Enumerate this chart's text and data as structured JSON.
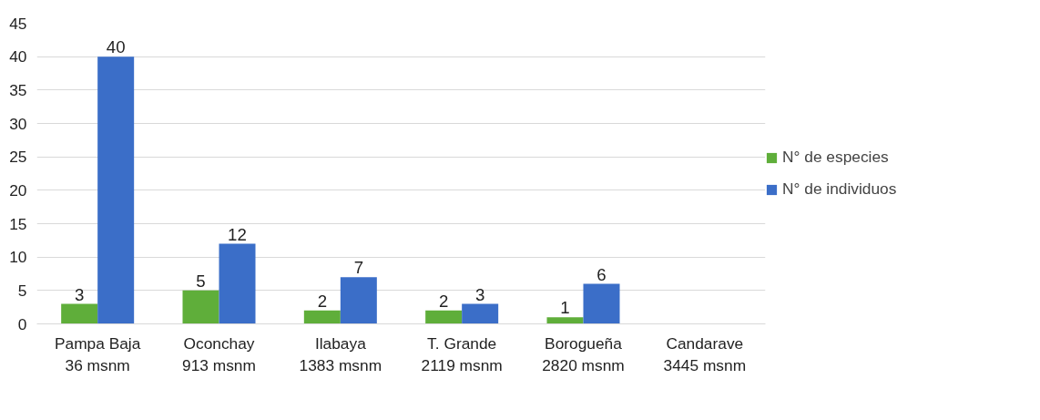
{
  "chart_data": {
    "type": "bar",
    "categories": [
      "Pampa Baja\n36 msnm",
      "Oconchay\n913 msnm",
      "Ilabaya\n1383 msnm",
      "T. Grande\n2119 msnm",
      "Borogueña\n2820 msnm",
      "Candarave\n3445 msnm"
    ],
    "series": [
      {
        "name": "N° de especies",
        "color": "#5fae3a",
        "values": [
          3,
          5,
          2,
          2,
          1,
          null
        ]
      },
      {
        "name": "N° de individuos",
        "color": "#3b6ec8",
        "values": [
          40,
          12,
          7,
          3,
          6,
          null
        ]
      }
    ],
    "ylim": [
      0,
      45
    ],
    "yticks": [
      0,
      5,
      10,
      15,
      20,
      25,
      30,
      35,
      40,
      45
    ],
    "grid": "y",
    "legend": "right",
    "data_labels": true
  }
}
